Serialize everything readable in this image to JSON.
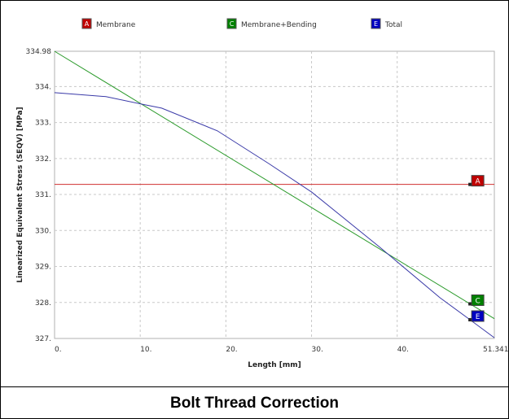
{
  "caption": "Bolt Thread Correction",
  "chart_data": {
    "type": "line",
    "title": "",
    "xlabel": "Length [mm]",
    "ylabel": "Linearized Equivalent Stress (SEQV) [MPa]",
    "xlim": [
      0,
      51.341
    ],
    "ylim": [
      327,
      334.98
    ],
    "xticks": [
      "0.",
      "10.",
      "20.",
      "30.",
      "40.",
      "51.341"
    ],
    "xtick_values": [
      0,
      10,
      20,
      30,
      40,
      51.341
    ],
    "yticks": [
      "327.",
      "328.",
      "329.",
      "330.",
      "331.",
      "332.",
      "333.",
      "334.",
      "334.98"
    ],
    "ytick_values": [
      327,
      328,
      329,
      330,
      331,
      332,
      333,
      334,
      334.98
    ],
    "grid": true,
    "legend_position": "top",
    "series": [
      {
        "name": "Membrane",
        "marker": "A",
        "color": "#d03030",
        "label_color": "#c00000",
        "x": [
          0,
          51.341
        ],
        "y": [
          331.28,
          331.28
        ]
      },
      {
        "name": "Membrane+Bending",
        "marker": "C",
        "color": "#2a9a2a",
        "label_color": "#008000",
        "x": [
          0,
          51.341
        ],
        "y": [
          334.98,
          327.55
        ]
      },
      {
        "name": "Total",
        "marker": "E",
        "color": "#3a3aa8",
        "label_color": "#0000c0",
        "x": [
          0,
          6,
          10,
          12.5,
          19,
          25,
          30,
          38,
          45,
          48.5,
          51.341
        ],
        "y": [
          333.83,
          333.72,
          333.52,
          333.4,
          332.77,
          331.86,
          331.07,
          329.53,
          328.13,
          327.52,
          327.02
        ]
      }
    ]
  }
}
